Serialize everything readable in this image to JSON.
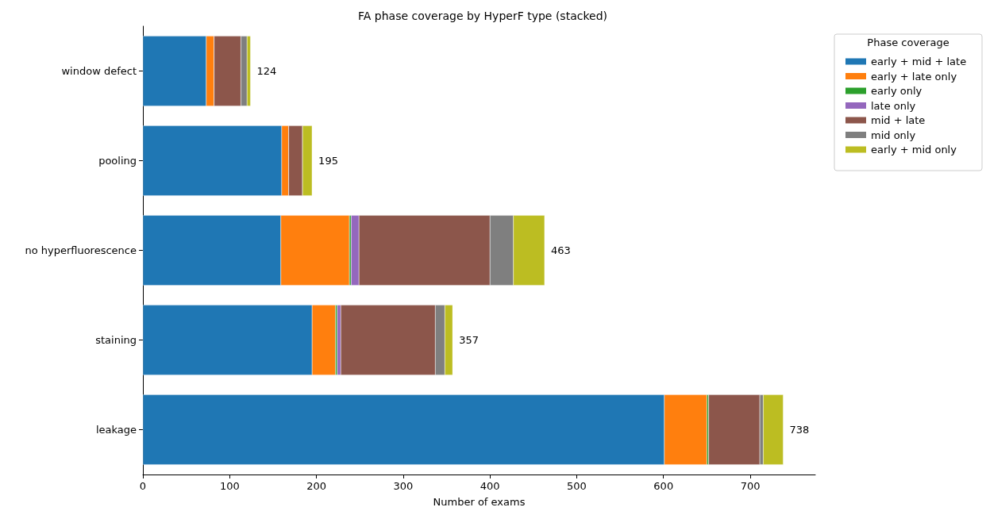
{
  "chart_data": {
    "type": "bar",
    "orientation": "horizontal",
    "stacked": true,
    "title": "FA phase coverage by HyperF type (stacked)",
    "xlabel": "Number of exams",
    "legend_title": "Phase coverage",
    "legend": "top right",
    "categories": [
      "window defect",
      "pooling",
      "no hyperfluorescence",
      "staining",
      "leakage"
    ],
    "series": [
      {
        "name": "early + mid + late",
        "color": "#1f77b4",
        "values": [
          73,
          160,
          159,
          195,
          601
        ]
      },
      {
        "name": "early + late only",
        "color": "#ff7f0e",
        "values": [
          9,
          8,
          79,
          27,
          49
        ]
      },
      {
        "name": "early only",
        "color": "#2ca02c",
        "values": [
          0,
          0,
          2,
          2,
          2
        ]
      },
      {
        "name": "late only",
        "color": "#9467bd",
        "values": [
          0,
          0,
          9,
          4,
          0
        ]
      },
      {
        "name": "mid + late",
        "color": "#8c564b",
        "values": [
          31,
          16,
          151,
          109,
          59
        ]
      },
      {
        "name": "mid only",
        "color": "#7f7f7f",
        "values": [
          7,
          0,
          27,
          11,
          4
        ]
      },
      {
        "name": "early + mid only",
        "color": "#bcbd22",
        "values": [
          4,
          11,
          36,
          9,
          23
        ]
      }
    ],
    "totals": [
      "124",
      "195",
      "463",
      "357",
      "738"
    ],
    "xlim": [
      0,
      775
    ],
    "xticks": [
      0,
      100,
      200,
      300,
      400,
      500,
      600,
      700
    ],
    "grid": false
  }
}
